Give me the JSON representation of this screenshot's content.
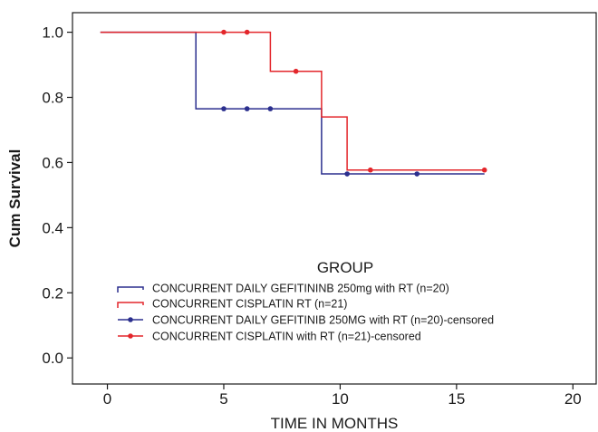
{
  "chart_data": {
    "type": "line",
    "subtype": "kaplan-meier step",
    "xlabel": "TIME IN MONTHS",
    "ylabel": "Cum Survival",
    "xlim": [
      -1.5,
      21
    ],
    "ylim": [
      -0.08,
      1.06
    ],
    "x_ticks": [
      0,
      5,
      10,
      15,
      20
    ],
    "y_ticks": [
      0.0,
      0.2,
      0.4,
      0.6,
      0.8,
      1.0
    ],
    "x_tick_labels": [
      "0",
      "5",
      "10",
      "15",
      "20"
    ],
    "y_tick_labels": [
      "0.0",
      "0.2",
      "0.4",
      "0.6",
      "0.8",
      "1.0"
    ],
    "grid": false,
    "legend": {
      "title": "GROUP",
      "placement": "bottom-left"
    },
    "series": [
      {
        "name": "CONCURRENT DAILY GEFITININB 250mg with RT (n=20)",
        "kind": "step",
        "color": "#2b2f8e",
        "x": [
          -0.3,
          3.8,
          3.8,
          9.2,
          9.2,
          16.2
        ],
        "y": [
          1.0,
          1.0,
          0.765,
          0.765,
          0.565,
          0.565
        ]
      },
      {
        "name": "CONCURRENT CISPLATIN RT (n=21)",
        "kind": "step",
        "color": "#e3262b",
        "x": [
          -0.3,
          7.0,
          7.0,
          9.2,
          9.2,
          10.3,
          10.3,
          16.2
        ],
        "y": [
          1.0,
          1.0,
          0.88,
          0.88,
          0.74,
          0.74,
          0.577,
          0.577
        ]
      },
      {
        "name": "CONCURRENT DAILY GEFITINIB 250MG with RT (n=20)-censored",
        "kind": "censored",
        "color": "#2b2f8e",
        "x": [
          5.0,
          6.0,
          7.0,
          10.3,
          13.3
        ],
        "y": [
          0.765,
          0.765,
          0.765,
          0.565,
          0.565
        ]
      },
      {
        "name": "CONCURRENT CISPLATIN with RT (n=21)-censored",
        "kind": "censored",
        "color": "#e3262b",
        "x": [
          5.0,
          6.0,
          8.1,
          11.3,
          16.2
        ],
        "y": [
          1.0,
          1.0,
          0.88,
          0.577,
          0.577
        ]
      }
    ]
  }
}
